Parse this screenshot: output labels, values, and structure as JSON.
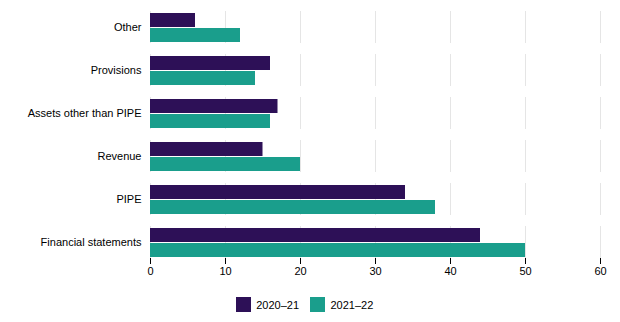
{
  "chart_data": {
    "type": "bar",
    "orientation": "horizontal",
    "categories": [
      "Financial statements",
      "PIPE",
      "Revenue",
      "Assets other than PIPE",
      "Provisions",
      "Other"
    ],
    "series": [
      {
        "name": "2020–21",
        "color": "#2d1057",
        "values": [
          44,
          34,
          15,
          17,
          16,
          6
        ]
      },
      {
        "name": "2021–22",
        "color": "#1a9e8c",
        "values": [
          50,
          38,
          20,
          16,
          14,
          12
        ]
      }
    ],
    "xlim": [
      0,
      60
    ],
    "xticks": [
      0,
      10,
      20,
      30,
      40,
      50,
      60
    ],
    "grid": true,
    "legend": "bottom"
  }
}
